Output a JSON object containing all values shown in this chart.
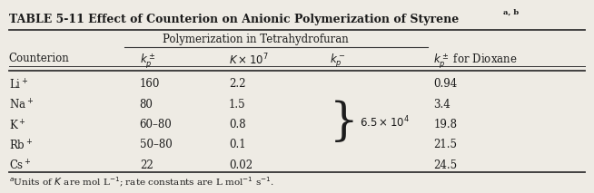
{
  "title_bold": "TABLE 5-11",
  "title_rest": "   Effect of Counterion on Anionic Polymerization of Styrene",
  "title_sup": "a, b",
  "subtitle": "Polymerization in Tetrahydrofuran",
  "footnote": "aUnits of K are mol L−1; rate constants are L mol−1 s−1.",
  "col_header_labels": [
    "Counterion",
    "$k_p^\\pm$",
    "$K \\times 10^7$",
    "$k_p^-$",
    "$k_p^\\pm$ for Dioxane"
  ],
  "rows": [
    [
      "Li$^+$",
      "160",
      "2.2",
      "0.94"
    ],
    [
      "Na$^+$",
      "80",
      "1.5",
      "3.4"
    ],
    [
      "K$^+$",
      "60–80",
      "0.8",
      "19.8"
    ],
    [
      "Rb$^+$",
      "50–80",
      "0.1",
      "21.5"
    ],
    [
      "Cs$^+$",
      "22",
      "0.02",
      "24.5"
    ]
  ],
  "brace_text": "$6.5 \\times 10^4$",
  "background_color": "#eeebe4",
  "text_color": "#1c1c1c",
  "line_color": "#333333",
  "fontsize": 8.5,
  "title_fontsize": 9.0
}
